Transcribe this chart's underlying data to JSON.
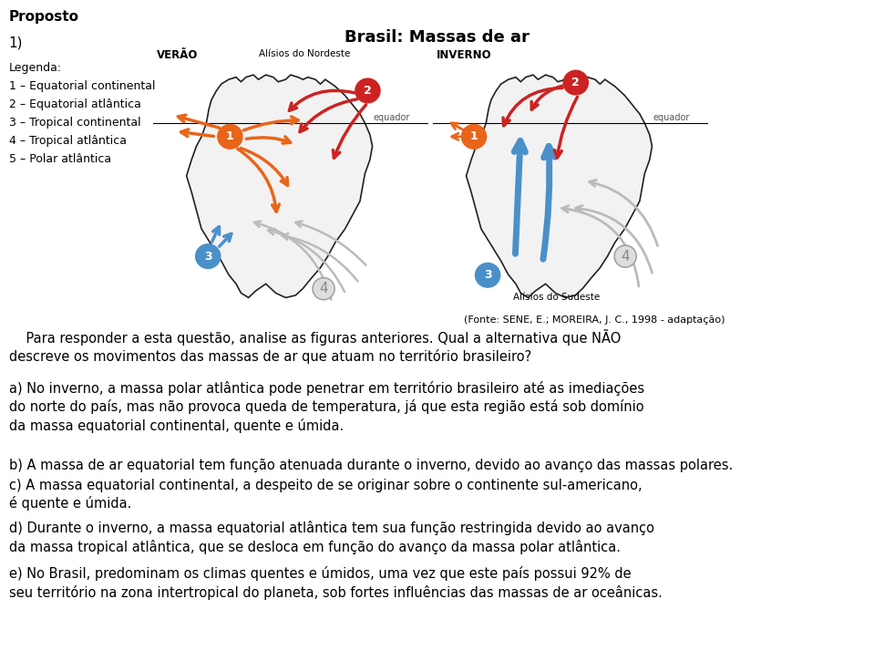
{
  "title": "Proposto",
  "number": "1)",
  "map_title": "Brasil: Massas de ar",
  "verao_label": "VERÃO",
  "inverno_label": "INVERNO",
  "alisios_nordeste": "Alísios do Nordeste",
  "alisios_sudeste": "Alísios do Sudeste",
  "equador_label": "equador",
  "legenda_title": "Legenda:",
  "legenda_items": [
    "1 – Equatorial continental",
    "2 – Equatorial atlântica",
    "3 – Tropical continental",
    "4 – Tropical atlântica",
    "5 – Polar atlântica"
  ],
  "fonte": "(Fonte: SENE, E.; MOREIRA, J. C., 1998 - adaptação)",
  "intro_text": "    Para responder a esta questão, analise as figuras anteriores. Qual a alternativa que NÃO\ndescreve os movimentos das massas de ar que atuam no território brasileiro?",
  "alt_a": "a) No inverno, a massa polar atlântica pode penetrar em território brasileiro até as imediações\ndo norte do país, mas não provoca queda de temperatura, já que esta região está sob domínio\nda massa equatorial continental, quente e úmida.",
  "alt_b": "b) A massa de ar equatorial tem função atenuada durante o inverno, devido ao avanço das massas polares.",
  "alt_c": "c) A massa equatorial continental, a despeito de se originar sobre o continente sul-americano,\né quente e úmida.",
  "alt_d": "d) Durante o inverno, a massa equatorial atlântica tem sua função restringida devido ao avanço\nda massa tropical atlântica, que se desloca em função do avanço da massa polar atlântica.",
  "alt_e": "e) No Brasil, predominam os climas quentes e úmidos, uma vez que este país possui 92% de\nseu território na zona intertropical do planeta, sob fortes influências das massas de ar oceânicas.",
  "bg_color": "#ffffff",
  "text_color": "#000000",
  "orange_color": "#E8651A",
  "blue_color": "#4A90C8",
  "gray_color": "#BBBBBB",
  "red_color": "#CC2222",
  "map_bg": "#ffffff",
  "brazil_face": "#f0f0f0",
  "brazil_edge": "#333333"
}
